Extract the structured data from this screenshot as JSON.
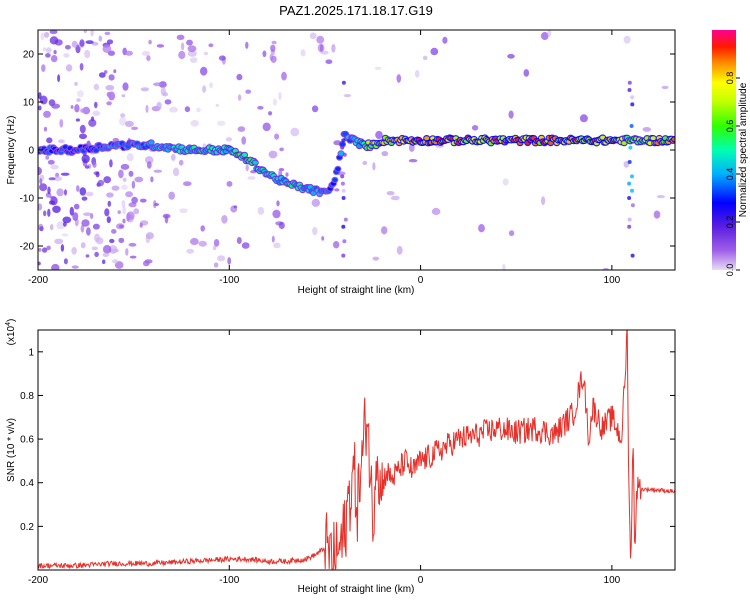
{
  "title": "PAZ1.2025.171.18.17.G19",
  "chart_data": [
    {
      "type": "heatmap",
      "xlabel": "Height of straight line (km)",
      "ylabel": "Frequency (Hz)",
      "xlim": [
        -200,
        133
      ],
      "ylim": [
        -25,
        25
      ],
      "x_ticks": [
        -200,
        -100,
        0,
        100
      ],
      "y_ticks": [
        -20,
        -10,
        0,
        10,
        20
      ],
      "colorbar": {
        "label": "Normalized spectral amplitude",
        "range": [
          0,
          1
        ],
        "ticks": [
          0.0,
          0.2,
          0.4,
          0.6,
          0.8
        ],
        "colormap": [
          "#e0d0f0",
          "#8a2be2",
          "#0000ff",
          "#00bfff",
          "#00ff80",
          "#80ff00",
          "#ffff00",
          "#ff8000",
          "#ff0000",
          "#ff00a0"
        ]
      },
      "ridge": {
        "x": [
          -200,
          -180,
          -160,
          -140,
          -120,
          -100,
          -90,
          -80,
          -70,
          -60,
          -50,
          -45,
          -40,
          -35,
          -30,
          -25,
          -20,
          -10,
          0,
          20,
          40,
          60,
          80,
          100,
          110,
          120,
          133
        ],
        "frequency": [
          0,
          0,
          1,
          1,
          0,
          0,
          -2,
          -5,
          -7,
          -8,
          -9,
          -7,
          3,
          2,
          1,
          1,
          2,
          2,
          2,
          2,
          2,
          2,
          2,
          2,
          2,
          2,
          2
        ],
        "amplitude": [
          0.3,
          0.3,
          0.35,
          0.4,
          0.45,
          0.5,
          0.5,
          0.45,
          0.45,
          0.45,
          0.35,
          0.3,
          0.4,
          0.4,
          0.55,
          0.65,
          0.7,
          0.75,
          0.8,
          0.8,
          0.8,
          0.8,
          0.8,
          0.8,
          0.6,
          0.7,
          0.8
        ]
      }
    },
    {
      "type": "line",
      "xlabel": "Height of straight line (km)",
      "ylabel": "SNR (10 * v/v)",
      "y_scale_label": "(x10^4)",
      "xlim": [
        -200,
        133
      ],
      "ylim": [
        0,
        1.1
      ],
      "x_ticks": [
        -200,
        -100,
        0,
        100
      ],
      "y_ticks": [
        0.2,
        0.4,
        0.6,
        0.8,
        1
      ],
      "color": "#e8302a",
      "series": [
        {
          "x": [
            -200,
            -180,
            -160,
            -140,
            -120,
            -100,
            -90,
            -80,
            -70,
            -60,
            -55,
            -50,
            -45,
            -40,
            -38,
            -35,
            -33,
            -30,
            -28,
            -26,
            -25,
            -23,
            -21,
            -18,
            -15,
            -12,
            -8,
            -4,
            0,
            5,
            10,
            20,
            30,
            40,
            50,
            60,
            70,
            80,
            85,
            88,
            90,
            95,
            100,
            105,
            107,
            108,
            109,
            110,
            111,
            112,
            113,
            115,
            120,
            133
          ],
          "values": [
            0.02,
            0.02,
            0.03,
            0.03,
            0.04,
            0.05,
            0.05,
            0.04,
            0.04,
            0.05,
            0.07,
            0.1,
            0.04,
            0.15,
            0.3,
            0.45,
            0.3,
            0.55,
            0.75,
            0.4,
            0.2,
            0.6,
            0.35,
            0.45,
            0.42,
            0.45,
            0.5,
            0.45,
            0.5,
            0.52,
            0.55,
            0.6,
            0.62,
            0.65,
            0.63,
            0.65,
            0.62,
            0.72,
            0.9,
            0.6,
            0.75,
            0.65,
            0.7,
            0.6,
            0.9,
            1.1,
            0.3,
            0.05,
            0.6,
            0.1,
            0.38,
            0.37,
            0.37,
            0.36
          ]
        }
      ]
    }
  ]
}
